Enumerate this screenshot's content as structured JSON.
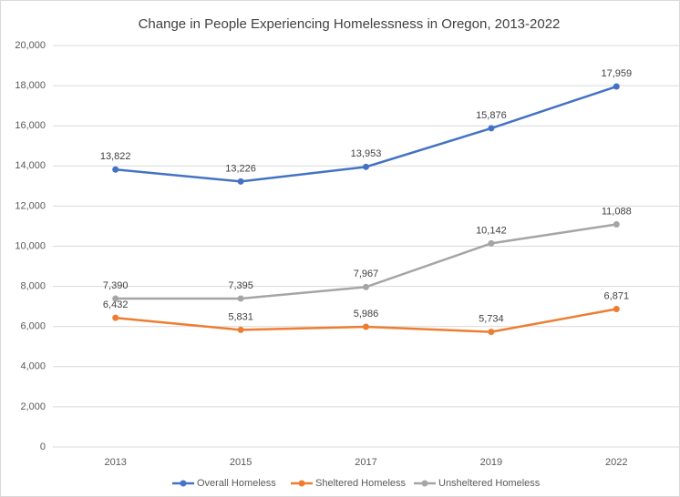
{
  "chart_data": {
    "type": "line",
    "title": "Change in People Experiencing Homelessness in Oregon, 2013-2022",
    "categories": [
      "2013",
      "2015",
      "2017",
      "2019",
      "2022"
    ],
    "series": [
      {
        "name": "Overall Homeless",
        "color": "#4472c4",
        "values": [
          13822,
          13226,
          13953,
          15876,
          17959
        ],
        "value_labels": [
          "13,822",
          "13,226",
          "13,953",
          "15,876",
          "17,959"
        ]
      },
      {
        "name": "Sheltered Homeless",
        "color": "#ed7d31",
        "values": [
          6432,
          5831,
          5986,
          5734,
          6871
        ],
        "value_labels": [
          "6,432",
          "5,831",
          "5,986",
          "5,734",
          "6,871"
        ]
      },
      {
        "name": "Unsheltered Homeless",
        "color": "#a5a5a5",
        "values": [
          7390,
          7395,
          7967,
          10142,
          11088
        ],
        "value_labels": [
          "7,390",
          "7,395",
          "7,967",
          "10,142",
          "11,088"
        ]
      }
    ],
    "ylim": [
      0,
      20000
    ],
    "yticks": [
      0,
      {
        "value": 2000,
        "label": "2,000"
      },
      {
        "value": 4000,
        "label": "4,000"
      },
      {
        "value": 6000,
        "label": "6,000"
      },
      {
        "value": 8000,
        "label": "8,000"
      },
      {
        "value": 10000,
        "label": "10,000"
      },
      {
        "value": 12000,
        "label": "12,000"
      },
      {
        "value": 14000,
        "label": "14,000"
      },
      {
        "value": 16000,
        "label": "16,000"
      },
      {
        "value": 18000,
        "label": "18,000"
      },
      {
        "value": 20000,
        "label": "20,000"
      }
    ],
    "grid": true,
    "legend": "bottom"
  }
}
